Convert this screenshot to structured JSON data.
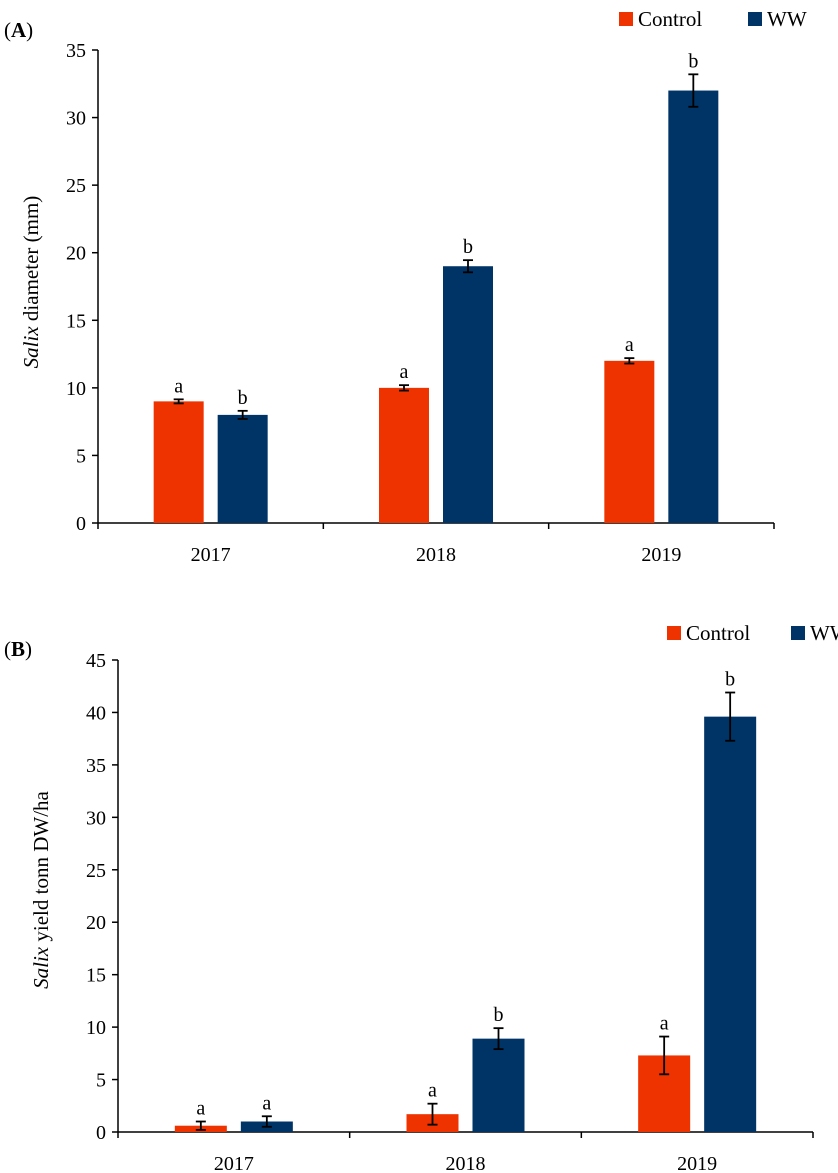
{
  "chart_data": [
    {
      "panel_label": "A",
      "type": "bar",
      "categories": [
        "2017",
        "2018",
        "2019"
      ],
      "series": [
        {
          "name": "Control",
          "color": "#EE3300",
          "values": [
            9.0,
            10.0,
            12.0
          ],
          "errors": [
            0.15,
            0.2,
            0.2
          ],
          "letters": [
            "a",
            "a",
            "a"
          ]
        },
        {
          "name": "WW",
          "color": "#003366",
          "values": [
            8.0,
            19.0,
            32.0
          ],
          "errors": [
            0.3,
            0.45,
            1.2
          ],
          "letters": [
            "b",
            "b",
            "b"
          ]
        }
      ],
      "ylabel_italic": "Salix",
      "ylabel_rest": " diameter (mm)",
      "ylim": [
        0,
        35
      ],
      "yticks": [
        0,
        5,
        10,
        15,
        20,
        25,
        30,
        35
      ],
      "legend_position": "top-right",
      "grid": false
    },
    {
      "panel_label": "B",
      "type": "bar",
      "categories": [
        "2017",
        "2018",
        "2019"
      ],
      "series": [
        {
          "name": "Control",
          "color": "#EE3300",
          "values": [
            0.6,
            1.7,
            7.3
          ],
          "errors": [
            0.4,
            1.0,
            1.8
          ],
          "letters": [
            "a",
            "a",
            "a"
          ]
        },
        {
          "name": "WW",
          "color": "#003366",
          "values": [
            1.0,
            8.9,
            39.6
          ],
          "errors": [
            0.5,
            1.0,
            2.3
          ],
          "letters": [
            "a",
            "b",
            "b"
          ]
        }
      ],
      "ylabel_italic": "Salix",
      "ylabel_rest": " yield tonn DW/ha",
      "ylim": [
        0,
        45
      ],
      "yticks": [
        0,
        5,
        10,
        15,
        20,
        25,
        30,
        35,
        40,
        45
      ],
      "legend_position": "top-right",
      "grid": false
    }
  ]
}
